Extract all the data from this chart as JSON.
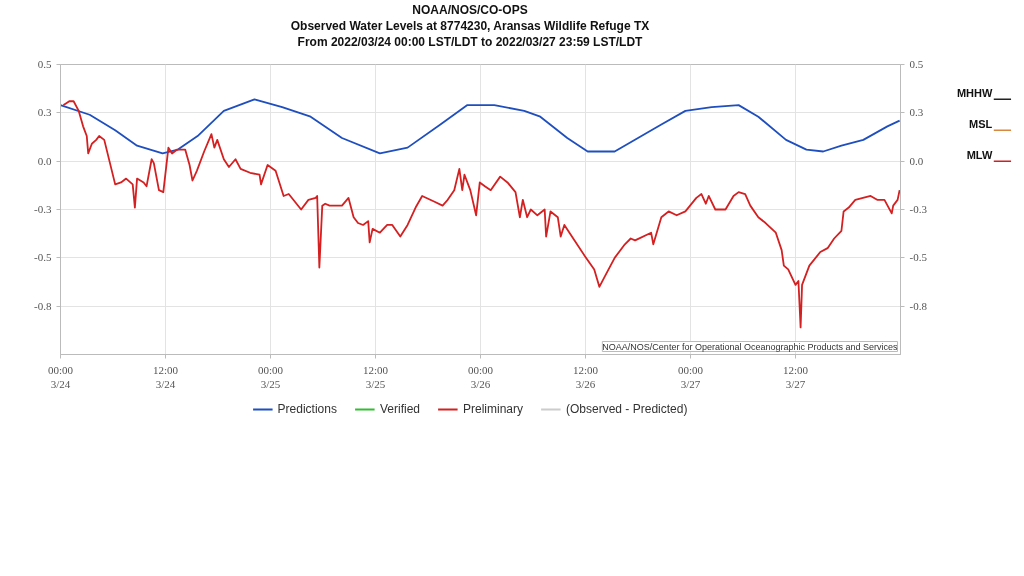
{
  "chart_data": {
    "type": "line",
    "title": "NOAA/NOS/CO-OPS",
    "subtitle": "Observed Water Levels at 8774230, Aransas Wildlife Refuge TX\nFrom 2022/03/24 00:00 LST/LDT to 2022/03/27 23:59 LST/LDT",
    "xlim": [
      "2022-03-24T00:00",
      "2022-03-28T00:00"
    ],
    "xticks": [
      {
        "value": "2022-03-24T00:00",
        "label": "00:00\n3/24"
      },
      {
        "value": "2022-03-24T12:00",
        "label": "12:00\n3/24"
      },
      {
        "value": "2022-03-25T00:00",
        "label": "00:00\n3/25"
      },
      {
        "value": "2022-03-25T12:00",
        "label": "12:00\n3/25"
      },
      {
        "value": "2022-03-26T00:00",
        "label": "00:00\n3/26"
      },
      {
        "value": "2022-03-26T12:00",
        "label": "12:00\n3/26"
      },
      {
        "value": "2022-03-27T00:00",
        "label": "00:00\n3/27"
      },
      {
        "value": "2022-03-27T12:00",
        "label": "12:00\n3/27"
      }
    ],
    "ylim": [
      -1.0,
      0.5
    ],
    "yticks": [
      0.5,
      {
        "value": 0.25,
        "label": "0.3"
      },
      {
        "value": 0,
        "label": "0.0"
      },
      {
        "value": -0.25,
        "label": "-0.3"
      },
      -0.5,
      {
        "value": -0.75,
        "label": "-0.8"
      }
    ],
    "y2lim": [
      -1.0,
      0.5
    ],
    "y2ticks": [
      0.5,
      {
        "value": 0.25,
        "label": "0.3"
      },
      {
        "value": 0,
        "label": "0.0"
      },
      {
        "value": -0.25,
        "label": "-0.3"
      },
      -0.5,
      {
        "value": -0.75,
        "label": "-0.8"
      }
    ],
    "grid": true,
    "legend": "bottom",
    "series": [
      {
        "name": "Predictions",
        "color": "#1f4fbf",
        "x": [
          "2022-03-24T00:00",
          "2022-03-24T03:20",
          "2022-03-24T06:15",
          "2022-03-24T08:45",
          "2022-03-24T11:40",
          "2022-03-24T13:25",
          "2022-03-24T15:40",
          "2022-03-24T18:40",
          "2022-03-24T22:10",
          "2022-03-25T01:20",
          "2022-03-25T04:35",
          "2022-03-25T08:10",
          "2022-03-25T12:30",
          "2022-03-25T15:40",
          "2022-03-25T19:25",
          "2022-03-25T22:30",
          "2022-03-26T01:35",
          "2022-03-26T05:00",
          "2022-03-26T06:50",
          "2022-03-26T09:55",
          "2022-03-26T12:15",
          "2022-03-26T15:20",
          "2022-03-26T18:00",
          "2022-03-26T20:40",
          "2022-03-26T23:25",
          "2022-03-27T02:25",
          "2022-03-27T05:30",
          "2022-03-27T07:45",
          "2022-03-27T10:55",
          "2022-03-27T13:15",
          "2022-03-27T15:10",
          "2022-03-27T17:15",
          "2022-03-27T19:45",
          "2022-03-27T22:30",
          "2022-03-27T23:54"
        ],
        "values": [
          0.29,
          0.24,
          0.16,
          0.08,
          0.04,
          0.06,
          0.13,
          0.26,
          0.32,
          0.28,
          0.23,
          0.12,
          0.04,
          0.07,
          0.19,
          0.29,
          0.29,
          0.26,
          0.23,
          0.12,
          0.05,
          0.05,
          0.12,
          0.19,
          0.26,
          0.28,
          0.29,
          0.23,
          0.11,
          0.06,
          0.05,
          0.08,
          0.11,
          0.18,
          0.21
        ]
      },
      {
        "name": "Verified",
        "color": "#33bb33"
      },
      {
        "name": "Preliminary",
        "color": "#d42020",
        "x": [
          "2022-03-24T00:20",
          "2022-03-24T00:40",
          "2022-03-24T01:00",
          "2022-03-24T01:30",
          "2022-03-24T02:05",
          "2022-03-24T02:35",
          "2022-03-24T03:00",
          "2022-03-24T03:10",
          "2022-03-24T03:35",
          "2022-03-24T04:05",
          "2022-03-24T04:25",
          "2022-03-24T05:00",
          "2022-03-24T06:15",
          "2022-03-24T06:55",
          "2022-03-24T07:30",
          "2022-03-24T08:15",
          "2022-03-24T08:30",
          "2022-03-24T08:45",
          "2022-03-24T09:30",
          "2022-03-24T09:50",
          "2022-03-24T10:25",
          "2022-03-24T10:40",
          "2022-03-24T11:15",
          "2022-03-24T11:45",
          "2022-03-24T12:20",
          "2022-03-24T12:45",
          "2022-03-24T13:20",
          "2022-03-24T14:15",
          "2022-03-24T14:45",
          "2022-03-24T15:05",
          "2022-03-24T15:35",
          "2022-03-24T16:25",
          "2022-03-24T17:15",
          "2022-03-24T17:35",
          "2022-03-24T17:55",
          "2022-03-24T18:40",
          "2022-03-24T19:15",
          "2022-03-24T20:00",
          "2022-03-24T20:35",
          "2022-03-24T21:40",
          "2022-03-24T22:45",
          "2022-03-24T22:55",
          "2022-03-24T23:40",
          "2022-03-25T00:35",
          "2022-03-25T01:30",
          "2022-03-25T02:05",
          "2022-03-25T03:30",
          "2022-03-25T04:20",
          "2022-03-25T05:10",
          "2022-03-25T05:20",
          "2022-03-25T05:35",
          "2022-03-25T05:55",
          "2022-03-25T06:15",
          "2022-03-25T06:45",
          "2022-03-25T08:10",
          "2022-03-25T08:55",
          "2022-03-25T09:30",
          "2022-03-25T10:00",
          "2022-03-25T10:35",
          "2022-03-25T11:10",
          "2022-03-25T11:20",
          "2022-03-25T11:40",
          "2022-03-25T12:30",
          "2022-03-25T13:20",
          "2022-03-25T13:55",
          "2022-03-25T14:50",
          "2022-03-25T15:40",
          "2022-03-25T16:35",
          "2022-03-25T17:20",
          "2022-03-25T18:45",
          "2022-03-25T19:40",
          "2022-03-25T20:15",
          "2022-03-25T21:00",
          "2022-03-25T21:35",
          "2022-03-25T21:55",
          "2022-03-25T22:10",
          "2022-03-25T22:50",
          "2022-03-25T23:30",
          "2022-03-25T23:55",
          "2022-03-26T00:30",
          "2022-03-26T01:10",
          "2022-03-26T02:15",
          "2022-03-26T03:05",
          "2022-03-26T04:00",
          "2022-03-26T04:30",
          "2022-03-26T04:50",
          "2022-03-26T05:20",
          "2022-03-26T05:45",
          "2022-03-26T06:30",
          "2022-03-26T07:20",
          "2022-03-26T07:30",
          "2022-03-26T08:00",
          "2022-03-26T08:50",
          "2022-03-26T09:10",
          "2022-03-26T09:35",
          "2022-03-26T10:45",
          "2022-03-26T11:55",
          "2022-03-26T13:00",
          "2022-03-26T13:35",
          "2022-03-26T14:10",
          "2022-03-26T15:20",
          "2022-03-26T16:30",
          "2022-03-26T17:10",
          "2022-03-26T17:40",
          "2022-03-26T19:30",
          "2022-03-26T19:45",
          "2022-03-26T20:40",
          "2022-03-26T21:30",
          "2022-03-26T22:25",
          "2022-03-26T23:25",
          "2022-03-27T00:40",
          "2022-03-27T01:15",
          "2022-03-27T01:45",
          "2022-03-27T02:05",
          "2022-03-27T02:50",
          "2022-03-27T04:00",
          "2022-03-27T04:55",
          "2022-03-27T05:30",
          "2022-03-27T06:15",
          "2022-03-27T06:50",
          "2022-03-27T07:45",
          "2022-03-27T08:35",
          "2022-03-27T09:45",
          "2022-03-27T10:25",
          "2022-03-27T10:40",
          "2022-03-27T11:10",
          "2022-03-27T12:00",
          "2022-03-27T12:20",
          "2022-03-27T12:35",
          "2022-03-27T12:45",
          "2022-03-27T13:35",
          "2022-03-27T14:50",
          "2022-03-27T15:40",
          "2022-03-27T16:25",
          "2022-03-27T17:15",
          "2022-03-27T17:30",
          "2022-03-27T18:05",
          "2022-03-27T18:50",
          "2022-03-27T20:35",
          "2022-03-27T21:20",
          "2022-03-27T22:10",
          "2022-03-27T23:00",
          "2022-03-27T23:10",
          "2022-03-27T23:40",
          "2022-03-27T23:54"
        ],
        "values": [
          0.29,
          0.3,
          0.31,
          0.31,
          0.26,
          0.18,
          0.13,
          0.04,
          0.09,
          0.11,
          0.13,
          0.11,
          -0.12,
          -0.11,
          -0.09,
          -0.12,
          -0.24,
          -0.09,
          -0.11,
          -0.13,
          0.01,
          -0.01,
          -0.15,
          -0.16,
          0.07,
          0.04,
          0.06,
          0.06,
          -0.02,
          -0.1,
          -0.05,
          0.05,
          0.14,
          0.07,
          0.11,
          0.01,
          -0.03,
          0.01,
          -0.04,
          -0.06,
          -0.07,
          -0.12,
          -0.02,
          -0.05,
          -0.18,
          -0.17,
          -0.25,
          -0.2,
          -0.19,
          -0.18,
          -0.55,
          -0.23,
          -0.22,
          -0.23,
          -0.23,
          -0.19,
          -0.29,
          -0.32,
          -0.33,
          -0.31,
          -0.42,
          -0.35,
          -0.37,
          -0.33,
          -0.33,
          -0.39,
          -0.33,
          -0.24,
          -0.18,
          -0.21,
          -0.23,
          -0.2,
          -0.15,
          -0.04,
          -0.15,
          -0.07,
          -0.15,
          -0.28,
          -0.11,
          -0.13,
          -0.15,
          -0.08,
          -0.11,
          -0.16,
          -0.29,
          -0.2,
          -0.29,
          -0.25,
          -0.28,
          -0.25,
          -0.39,
          -0.26,
          -0.29,
          -0.39,
          -0.33,
          -0.41,
          -0.49,
          -0.56,
          -0.65,
          -0.6,
          -0.5,
          -0.43,
          -0.4,
          -0.41,
          -0.37,
          -0.43,
          -0.29,
          -0.26,
          -0.28,
          -0.26,
          -0.19,
          -0.17,
          -0.22,
          -0.18,
          -0.25,
          -0.25,
          -0.18,
          -0.16,
          -0.17,
          -0.23,
          -0.29,
          -0.32,
          -0.37,
          -0.46,
          -0.54,
          -0.56,
          -0.64,
          -0.62,
          -0.86,
          -0.64,
          -0.54,
          -0.47,
          -0.45,
          -0.4,
          -0.36,
          -0.26,
          -0.24,
          -0.2,
          -0.18,
          -0.2,
          -0.2,
          -0.27,
          -0.23,
          -0.2,
          -0.15
        ]
      },
      {
        "name": "(Observed - Predicted)",
        "color": "#cccccc"
      }
    ],
    "ref_lines": [
      {
        "axis": "y2",
        "value": 0.32,
        "label": "MHHW",
        "color": "#222222"
      },
      {
        "axis": "y2",
        "value": 0.16,
        "label": "MSL",
        "color": "#d9873f"
      },
      {
        "axis": "y2",
        "value": 0.0,
        "label": "MLW",
        "color": "#cc2222"
      }
    ],
    "annotations": [
      "NOAA/NOS/Center for Operational Oceanographic Products and Services"
    ]
  }
}
